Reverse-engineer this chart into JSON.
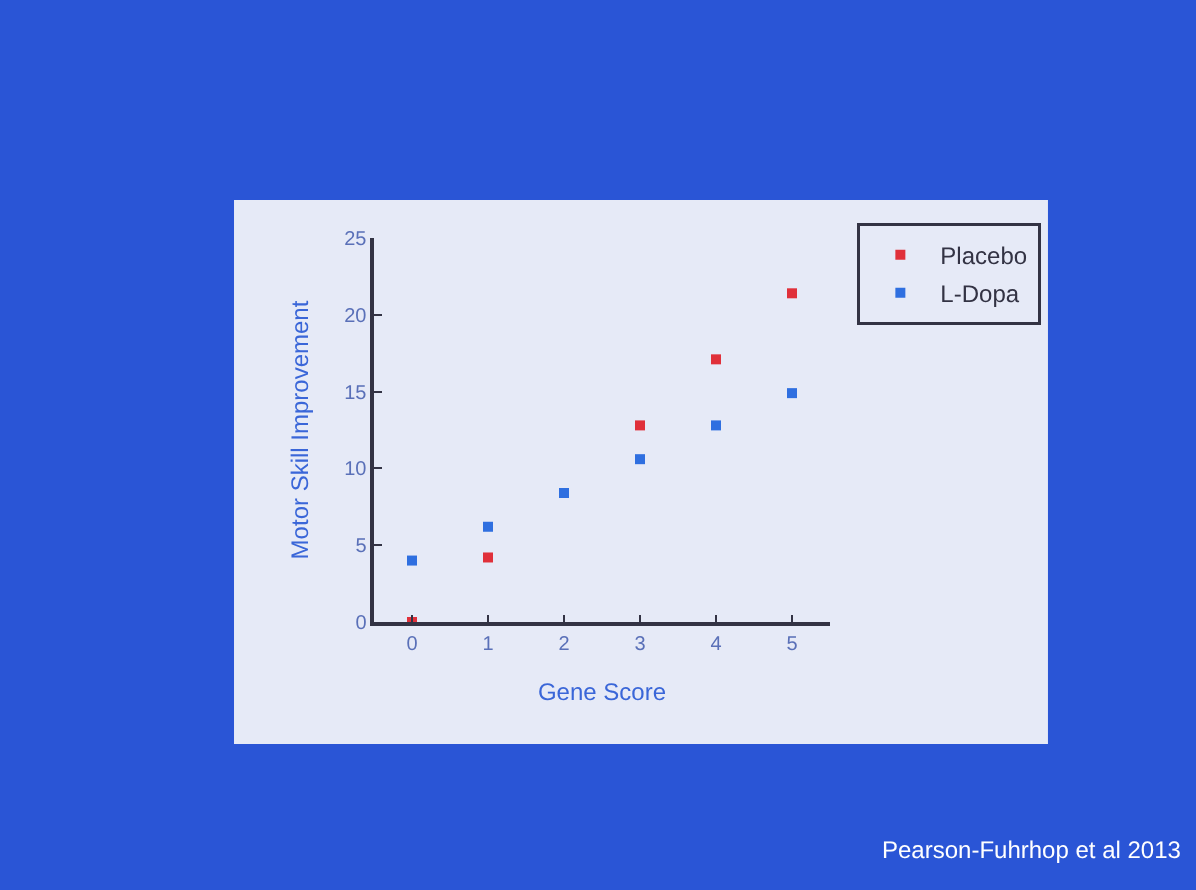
{
  "chart_data": {
    "type": "scatter",
    "xlabel": "Gene Score",
    "ylabel": "Motor Skill Improvement",
    "x": [
      0,
      1,
      2,
      3,
      4,
      5
    ],
    "series": [
      {
        "name": "Placebo",
        "color": "#e0303a",
        "values": [
          0,
          4.2,
          null,
          12.8,
          17.1,
          21.4
        ]
      },
      {
        "name": "L-Dopa",
        "color": "#2f6fe0",
        "values": [
          4.0,
          6.2,
          8.4,
          10.6,
          12.8,
          14.9
        ]
      }
    ],
    "xlim": [
      -0.5,
      5.5
    ],
    "xticks": [
      0,
      1,
      2,
      3,
      4,
      5
    ],
    "ylim": [
      0,
      25
    ],
    "yticks": [
      0,
      5,
      10,
      15,
      20,
      25
    ],
    "grid": false,
    "legend": "top right",
    "marker": "square",
    "annotations": [
      "Pearson-Fuhrhop et al 2013"
    ]
  }
}
